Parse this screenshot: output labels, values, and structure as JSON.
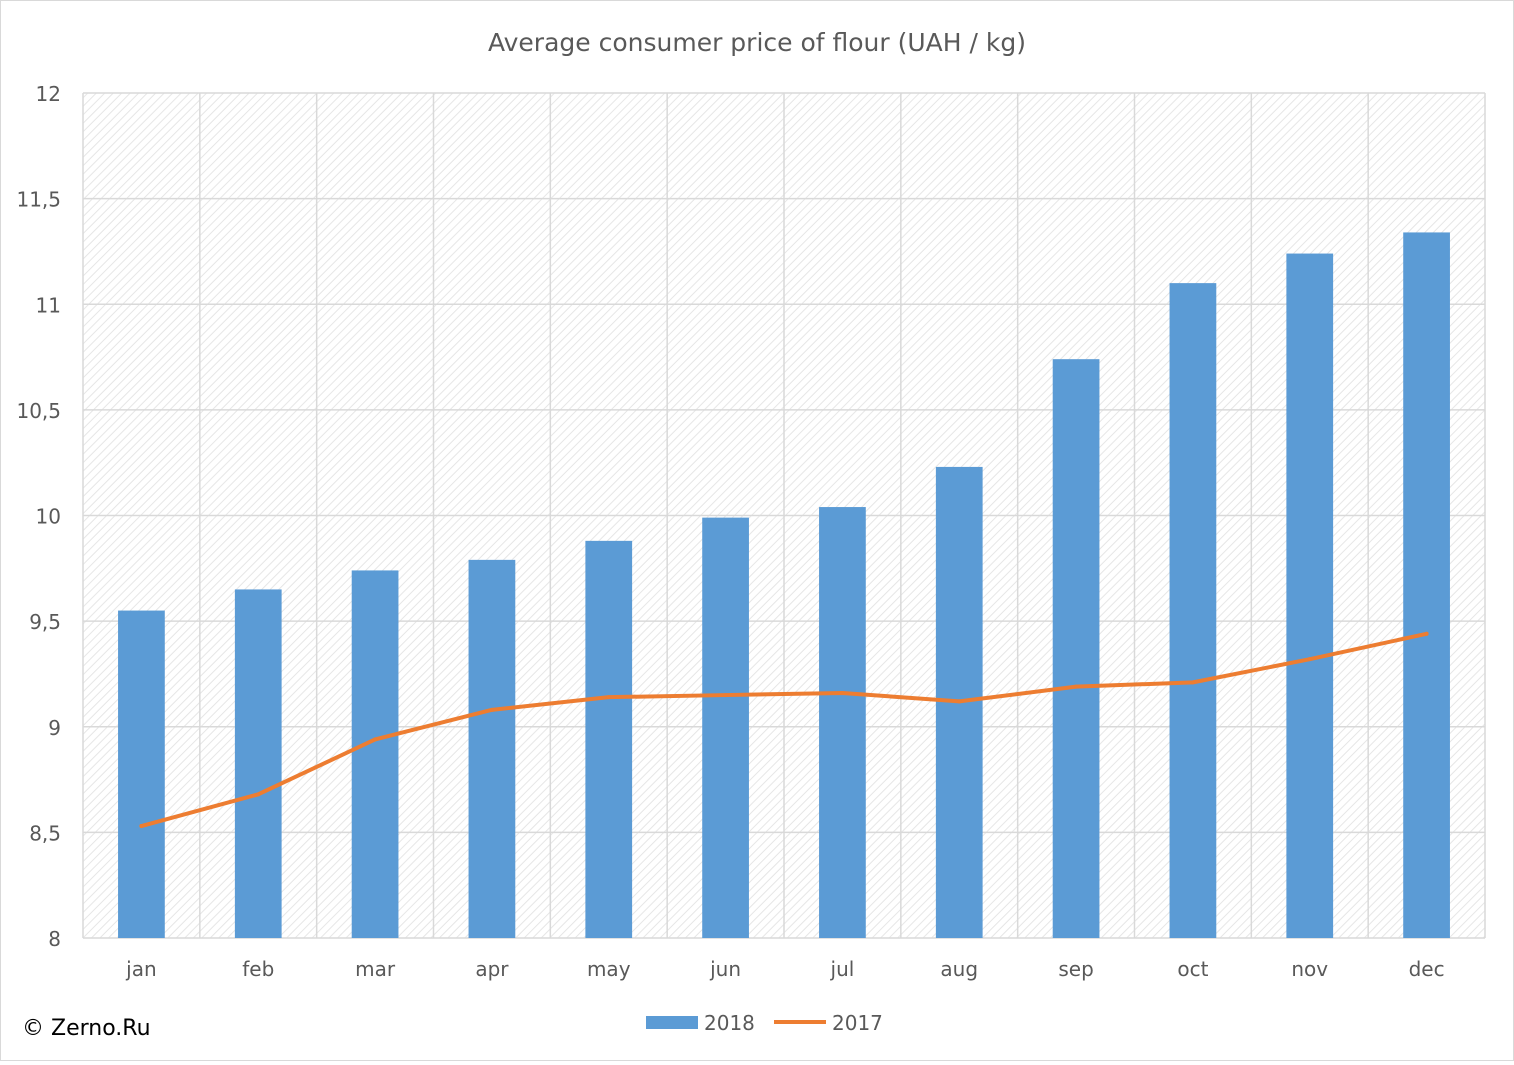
{
  "colors": {
    "bar": "#5b9bd5",
    "line": "#ed7d31",
    "grid": "#d9d9d9",
    "axis_text": "#595959"
  },
  "copyright": "© Zerno.Ru",
  "chart_data": {
    "type": "bar",
    "title": "Average consumer price of flour (UAH / kg)",
    "categories": [
      "jan",
      "feb",
      "mar",
      "apr",
      "may",
      "jun",
      "jul",
      "aug",
      "sep",
      "oct",
      "nov",
      "dec"
    ],
    "ylim": [
      8,
      12
    ],
    "yticks": [
      "8",
      "8,5",
      "9",
      "9,5",
      "10",
      "10,5",
      "11",
      "11,5",
      "12"
    ],
    "ytick_values": [
      8,
      8.5,
      9,
      9.5,
      10,
      10.5,
      11,
      11.5,
      12
    ],
    "grid": true,
    "legend_position": "bottom",
    "series": [
      {
        "name": "2018",
        "type": "bar",
        "values": [
          9.55,
          9.65,
          9.74,
          9.79,
          9.88,
          9.99,
          10.04,
          10.23,
          10.74,
          11.1,
          11.24,
          11.34
        ]
      },
      {
        "name": "2017",
        "type": "line",
        "values": [
          8.53,
          8.68,
          8.94,
          9.08,
          9.14,
          9.15,
          9.16,
          9.12,
          9.19,
          9.21,
          9.32,
          9.44
        ]
      }
    ]
  }
}
